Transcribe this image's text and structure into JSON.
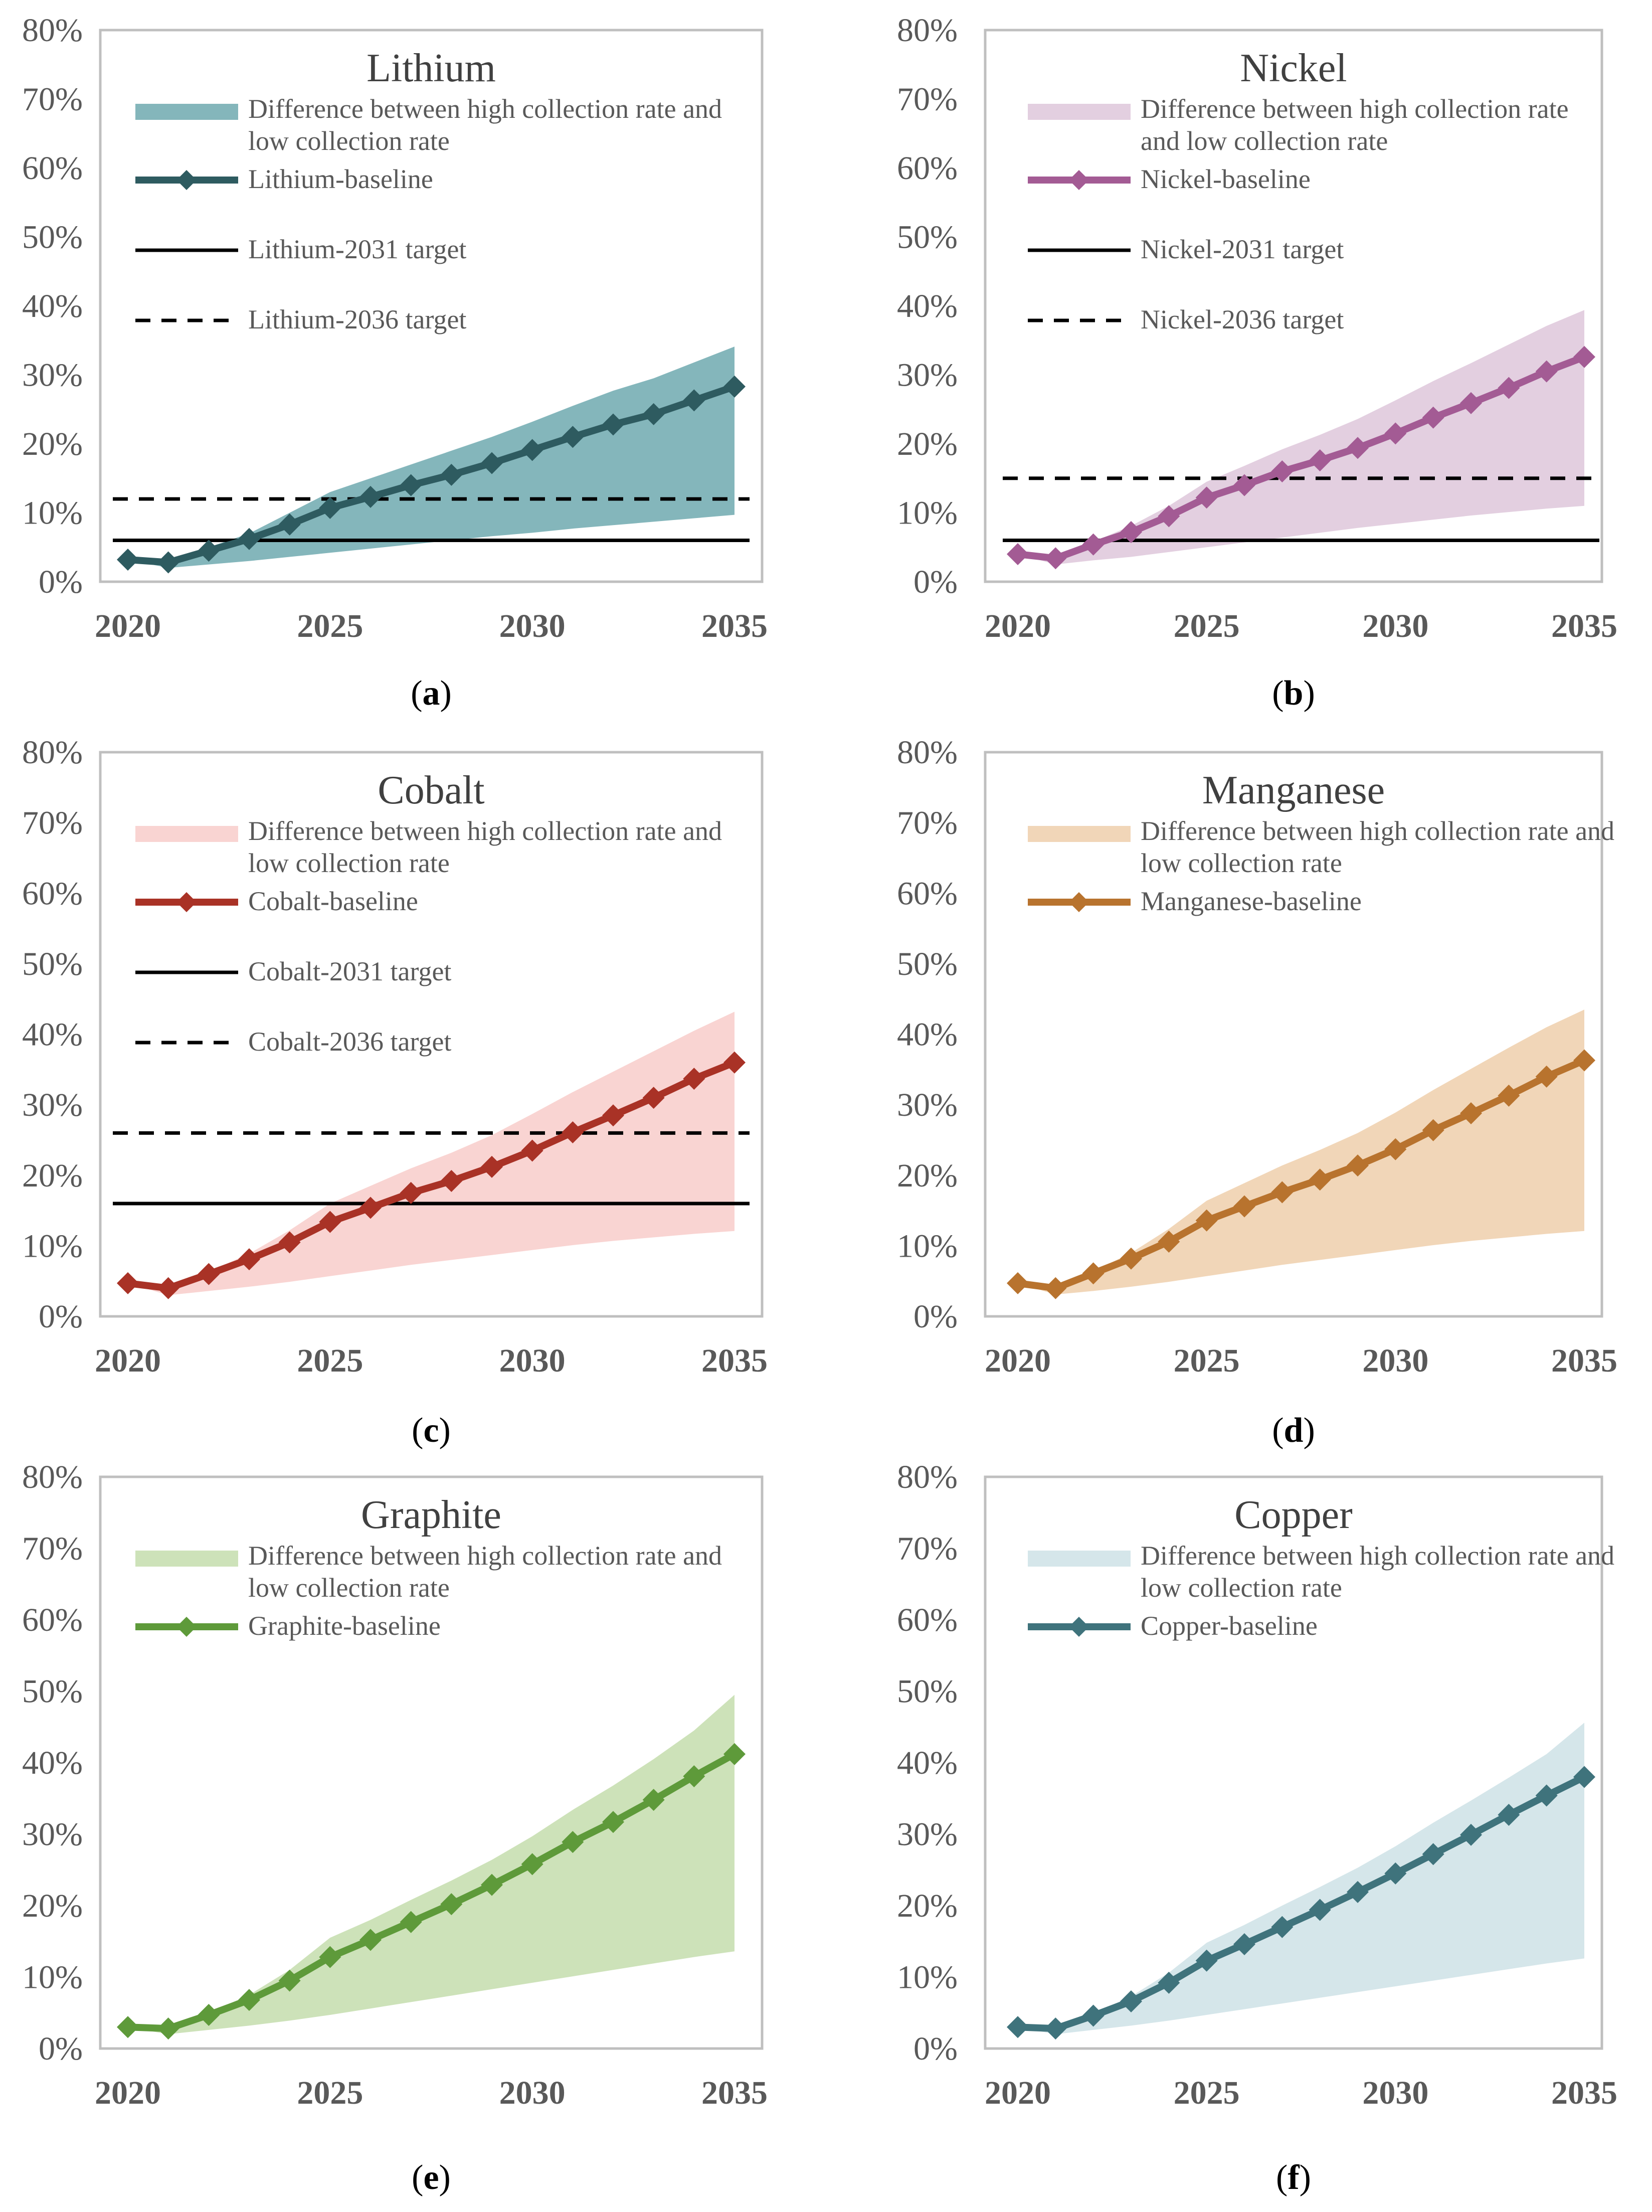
{
  "chart_data": [
    {
      "type": "area",
      "panel_label": "a",
      "title": "Lithium",
      "ylim": [
        0,
        0.8
      ],
      "yticks": [
        "0%",
        "10%",
        "20%",
        "30%",
        "40%",
        "50%",
        "60%",
        "70%",
        "80%"
      ],
      "xticks": [
        "2020",
        "2025",
        "2030",
        "2035"
      ],
      "x": [
        2020,
        2021,
        2022,
        2023,
        2024,
        2025,
        2026,
        2027,
        2028,
        2029,
        2030,
        2031,
        2032,
        2033,
        2034,
        2035
      ],
      "colors": {
        "band": "#84b6bb",
        "line": "#2e5b60"
      },
      "legend": {
        "band_label": [
          "Difference between high collection rate and",
          "low collection rate"
        ],
        "baseline_label": "Lithium-baseline",
        "target2031_label": "Lithium-2031 target",
        "target2036_label": "Lithium-2036 target"
      },
      "series": [
        {
          "name": "Lithium-baseline",
          "values": [
            0.032,
            0.028,
            0.045,
            0.062,
            0.083,
            0.107,
            0.123,
            0.14,
            0.155,
            0.172,
            0.191,
            0.21,
            0.228,
            0.243,
            0.263,
            0.283
          ]
        },
        {
          "name": "high collection rate",
          "values": [
            0.032,
            0.028,
            0.05,
            0.07,
            0.1,
            0.13,
            0.15,
            0.17,
            0.19,
            0.21,
            0.232,
            0.255,
            0.277,
            0.295,
            0.318,
            0.341
          ]
        },
        {
          "name": "low collection rate",
          "values": [
            0.032,
            0.02,
            0.025,
            0.03,
            0.036,
            0.042,
            0.048,
            0.054,
            0.06,
            0.066,
            0.071,
            0.077,
            0.082,
            0.087,
            0.092,
            0.097
          ]
        }
      ],
      "targets": [
        {
          "name": "Lithium-2031 target",
          "value": 0.06,
          "style": "solid"
        },
        {
          "name": "Lithium-2036 target",
          "value": 0.12,
          "style": "dashed"
        }
      ]
    },
    {
      "type": "area",
      "panel_label": "b",
      "title": "Nickel",
      "ylim": [
        0,
        0.8
      ],
      "yticks": [
        "0%",
        "10%",
        "20%",
        "30%",
        "40%",
        "50%",
        "60%",
        "70%",
        "80%"
      ],
      "xticks": [
        "2020",
        "2025",
        "2030",
        "2035"
      ],
      "x": [
        2020,
        2021,
        2022,
        2023,
        2024,
        2025,
        2026,
        2027,
        2028,
        2029,
        2030,
        2031,
        2032,
        2033,
        2034,
        2035
      ],
      "colors": {
        "band": "#e3cfe0",
        "line": "#a35b94"
      },
      "legend": {
        "band_label": [
          "Difference between high collection rate",
          "and low collection rate"
        ],
        "baseline_label": "Nickel-baseline",
        "target2031_label": "Nickel-2031 target",
        "target2036_label": "Nickel-2036 target"
      },
      "series": [
        {
          "name": "Nickel-baseline",
          "values": [
            0.04,
            0.034,
            0.054,
            0.072,
            0.095,
            0.122,
            0.14,
            0.16,
            0.176,
            0.194,
            0.215,
            0.238,
            0.259,
            0.281,
            0.305,
            0.326
          ]
        },
        {
          "name": "high collection rate",
          "values": [
            0.04,
            0.034,
            0.058,
            0.081,
            0.11,
            0.145,
            0.168,
            0.192,
            0.213,
            0.236,
            0.263,
            0.291,
            0.317,
            0.344,
            0.371,
            0.394
          ]
        },
        {
          "name": "low collection rate",
          "values": [
            0.04,
            0.025,
            0.031,
            0.036,
            0.043,
            0.05,
            0.057,
            0.064,
            0.071,
            0.078,
            0.084,
            0.09,
            0.096,
            0.101,
            0.106,
            0.11
          ]
        }
      ],
      "targets": [
        {
          "name": "Nickel-2031 target",
          "value": 0.06,
          "style": "solid"
        },
        {
          "name": "Nickel-2036 target",
          "value": 0.15,
          "style": "dashed"
        }
      ]
    },
    {
      "type": "area",
      "panel_label": "c",
      "title": "Cobalt",
      "ylim": [
        0,
        0.8
      ],
      "yticks": [
        "0%",
        "10%",
        "20%",
        "30%",
        "40%",
        "50%",
        "60%",
        "70%",
        "80%"
      ],
      "xticks": [
        "2020",
        "2025",
        "2030",
        "2035"
      ],
      "x": [
        2020,
        2021,
        2022,
        2023,
        2024,
        2025,
        2026,
        2027,
        2028,
        2029,
        2030,
        2031,
        2032,
        2033,
        2034,
        2035
      ],
      "colors": {
        "band": "#f9d4d2",
        "line": "#a93226"
      },
      "legend": {
        "band_label": [
          "Difference between high collection rate and",
          "low collection rate"
        ],
        "baseline_label": "Cobalt-baseline",
        "target2031_label": "Cobalt-2031 target",
        "target2036_label": "Cobalt-2036 target"
      },
      "series": [
        {
          "name": "Cobalt-baseline",
          "values": [
            0.047,
            0.04,
            0.06,
            0.081,
            0.105,
            0.134,
            0.154,
            0.175,
            0.192,
            0.212,
            0.235,
            0.261,
            0.285,
            0.31,
            0.337,
            0.36
          ]
        },
        {
          "name": "high collection rate",
          "values": [
            0.047,
            0.04,
            0.063,
            0.089,
            0.122,
            0.16,
            0.185,
            0.21,
            0.232,
            0.257,
            0.287,
            0.318,
            0.347,
            0.376,
            0.405,
            0.432
          ]
        },
        {
          "name": "low collection rate",
          "values": [
            0.047,
            0.03,
            0.036,
            0.042,
            0.049,
            0.057,
            0.065,
            0.073,
            0.08,
            0.087,
            0.094,
            0.101,
            0.107,
            0.112,
            0.117,
            0.121
          ]
        }
      ],
      "targets": [
        {
          "name": "Cobalt-2031 target",
          "value": 0.16,
          "style": "solid"
        },
        {
          "name": "Cobalt-2036 target",
          "value": 0.26,
          "style": "dashed"
        }
      ]
    },
    {
      "type": "area",
      "panel_label": "d",
      "title": "Manganese",
      "ylim": [
        0,
        0.8
      ],
      "yticks": [
        "0%",
        "10%",
        "20%",
        "30%",
        "40%",
        "50%",
        "60%",
        "70%",
        "80%"
      ],
      "xticks": [
        "2020",
        "2025",
        "2030",
        "2035"
      ],
      "x": [
        2020,
        2021,
        2022,
        2023,
        2024,
        2025,
        2026,
        2027,
        2028,
        2029,
        2030,
        2031,
        2032,
        2033,
        2034,
        2035
      ],
      "colors": {
        "band": "#f1d6b8",
        "line": "#b8732e"
      },
      "legend": {
        "band_label": [
          "Difference between high collection rate and",
          "low collection rate"
        ],
        "baseline_label": "Manganese-baseline"
      },
      "series": [
        {
          "name": "Manganese-baseline",
          "values": [
            0.047,
            0.04,
            0.061,
            0.082,
            0.106,
            0.136,
            0.156,
            0.176,
            0.194,
            0.214,
            0.237,
            0.264,
            0.288,
            0.313,
            0.34,
            0.363
          ]
        },
        {
          "name": "high collection rate",
          "values": [
            0.047,
            0.04,
            0.064,
            0.09,
            0.124,
            0.164,
            0.189,
            0.214,
            0.236,
            0.26,
            0.289,
            0.321,
            0.351,
            0.381,
            0.41,
            0.435
          ]
        },
        {
          "name": "low collection rate",
          "values": [
            0.047,
            0.031,
            0.036,
            0.042,
            0.049,
            0.057,
            0.065,
            0.073,
            0.08,
            0.087,
            0.094,
            0.101,
            0.107,
            0.112,
            0.117,
            0.121
          ]
        }
      ],
      "targets": []
    },
    {
      "type": "area",
      "panel_label": "e",
      "title": "Graphite",
      "ylim": [
        0,
        0.8
      ],
      "yticks": [
        "0%",
        "10%",
        "20%",
        "30%",
        "40%",
        "50%",
        "60%",
        "70%",
        "80%"
      ],
      "xticks": [
        "2020",
        "2025",
        "2030",
        "2035"
      ],
      "x": [
        2020,
        2021,
        2022,
        2023,
        2024,
        2025,
        2026,
        2027,
        2028,
        2029,
        2030,
        2031,
        2032,
        2033,
        2034,
        2035
      ],
      "colors": {
        "band": "#cde2b9",
        "line": "#5e9a3a"
      },
      "legend": {
        "band_label": [
          "Difference between high collection rate and",
          "low collection rate"
        ],
        "baseline_label": "Graphite-baseline"
      },
      "series": [
        {
          "name": "Graphite-baseline",
          "values": [
            0.03,
            0.028,
            0.047,
            0.068,
            0.095,
            0.128,
            0.152,
            0.177,
            0.202,
            0.229,
            0.258,
            0.289,
            0.317,
            0.348,
            0.381,
            0.412
          ]
        },
        {
          "name": "high collection rate",
          "values": [
            0.03,
            0.028,
            0.05,
            0.075,
            0.11,
            0.155,
            0.18,
            0.208,
            0.235,
            0.264,
            0.297,
            0.334,
            0.368,
            0.405,
            0.445,
            0.495
          ]
        },
        {
          "name": "low collection rate",
          "values": [
            0.03,
            0.02,
            0.026,
            0.032,
            0.039,
            0.047,
            0.056,
            0.065,
            0.074,
            0.083,
            0.092,
            0.101,
            0.11,
            0.119,
            0.128,
            0.136
          ]
        }
      ],
      "targets": []
    },
    {
      "type": "area",
      "panel_label": "f",
      "title": "Copper",
      "ylim": [
        0,
        0.8
      ],
      "yticks": [
        "0%",
        "10%",
        "20%",
        "30%",
        "40%",
        "50%",
        "60%",
        "70%",
        "80%"
      ],
      "xticks": [
        "2020",
        "2025",
        "2030",
        "2035"
      ],
      "x": [
        2020,
        2021,
        2022,
        2023,
        2024,
        2025,
        2026,
        2027,
        2028,
        2029,
        2030,
        2031,
        2032,
        2033,
        2034,
        2035
      ],
      "colors": {
        "band": "#d5e6ea",
        "line": "#3f737c"
      },
      "legend": {
        "band_label": [
          "Difference between high collection rate and",
          "low collection rate"
        ],
        "baseline_label": "Copper-baseline"
      },
      "series": [
        {
          "name": "Copper-baseline",
          "values": [
            0.03,
            0.028,
            0.046,
            0.066,
            0.092,
            0.123,
            0.146,
            0.17,
            0.194,
            0.219,
            0.245,
            0.272,
            0.299,
            0.327,
            0.354,
            0.38
          ]
        },
        {
          "name": "high collection rate",
          "values": [
            0.03,
            0.028,
            0.049,
            0.073,
            0.106,
            0.148,
            0.173,
            0.2,
            0.226,
            0.253,
            0.283,
            0.316,
            0.347,
            0.379,
            0.412,
            0.456
          ]
        },
        {
          "name": "low collection rate",
          "values": [
            0.03,
            0.02,
            0.026,
            0.032,
            0.039,
            0.047,
            0.055,
            0.063,
            0.071,
            0.079,
            0.087,
            0.095,
            0.103,
            0.111,
            0.119,
            0.126
          ]
        }
      ],
      "targets": []
    }
  ]
}
